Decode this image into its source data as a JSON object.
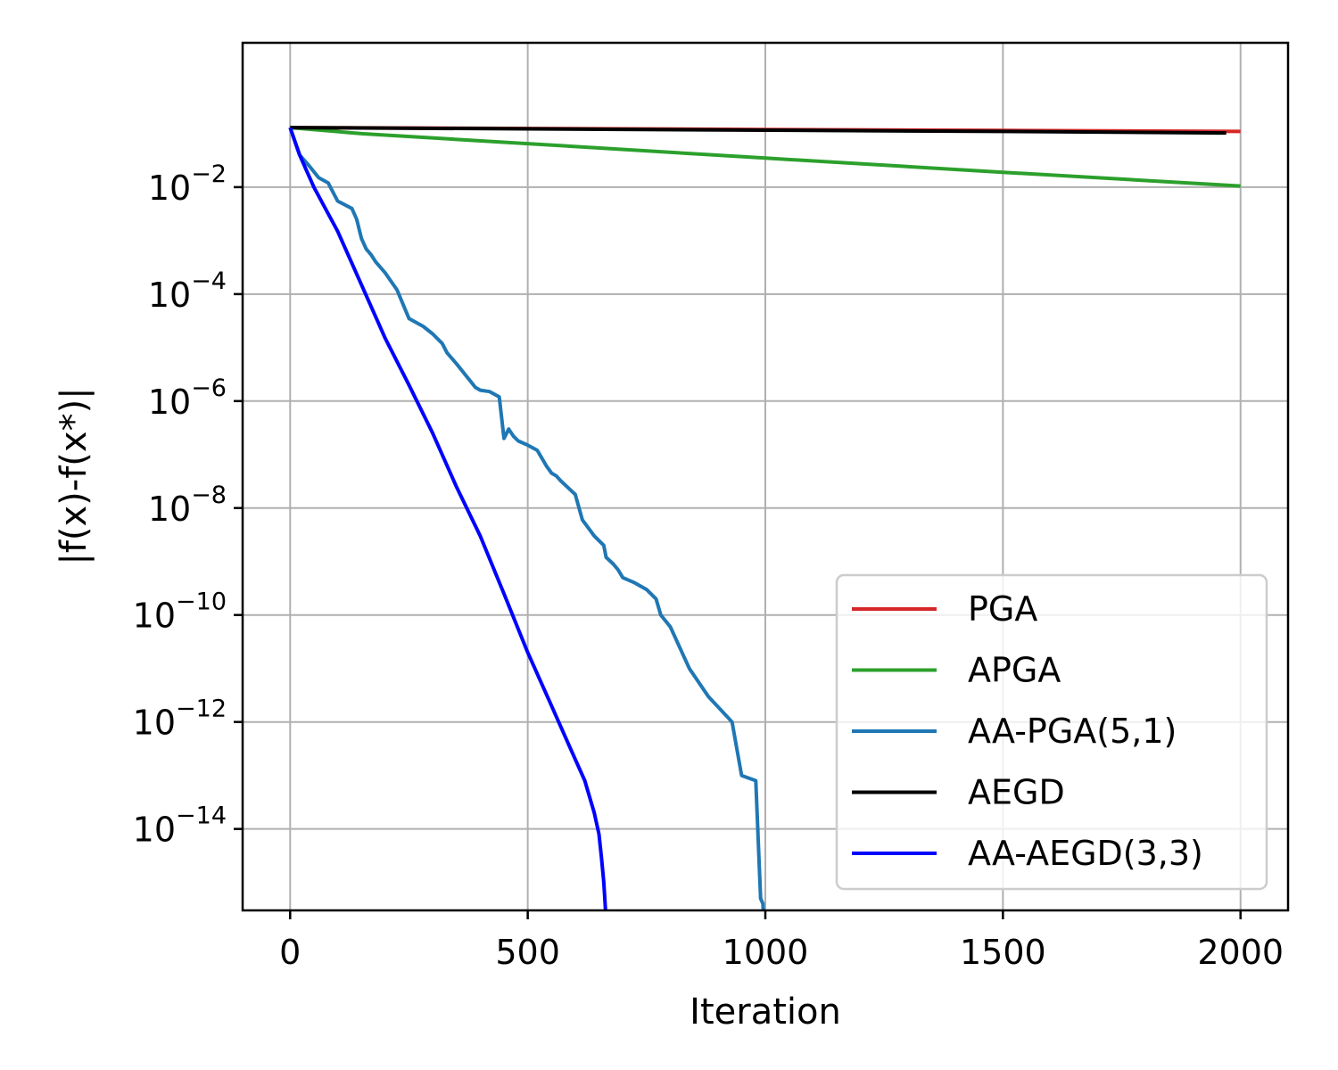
{
  "chart_data": {
    "type": "line",
    "xlabel": "Iteration",
    "ylabel": "|f(x)-f(x*)|",
    "xlim": [
      -100,
      2100
    ],
    "ylim": [
      3e-16,
      5.0
    ],
    "yscale": "log",
    "grid": true,
    "legend_position": "lower-right",
    "x_ticks": [
      0,
      500,
      1000,
      1500,
      2000
    ],
    "x_tick_labels": [
      "0",
      "500",
      "1000",
      "1500",
      "2000"
    ],
    "y_ticks": [
      1e-14,
      1e-12,
      1e-10,
      1e-08,
      1e-06,
      0.0001,
      0.01
    ],
    "y_tick_labels": [
      {
        "base": "10",
        "exp": "−14"
      },
      {
        "base": "10",
        "exp": "−12"
      },
      {
        "base": "10",
        "exp": "−10"
      },
      {
        "base": "10",
        "exp": "−8"
      },
      {
        "base": "10",
        "exp": "−6"
      },
      {
        "base": "10",
        "exp": "−4"
      },
      {
        "base": "10",
        "exp": "−2"
      }
    ],
    "series": [
      {
        "name": "PGA",
        "color": "#d62728",
        "x": [
          0,
          500,
          1000,
          1500,
          2000
        ],
        "y": [
          0.13,
          0.125,
          0.12,
          0.115,
          0.11
        ]
      },
      {
        "name": "APGA",
        "color": "#2ca02c",
        "x": [
          0,
          150,
          500,
          1000,
          1500,
          2000
        ],
        "y": [
          0.13,
          0.1,
          0.065,
          0.035,
          0.019,
          0.0105
        ]
      },
      {
        "name": "AA-PGA(5,1)",
        "color": "#1f77b4",
        "x": [
          0,
          20,
          40,
          60,
          80,
          100,
          130,
          140,
          150,
          160,
          170,
          180,
          200,
          225,
          250,
          280,
          300,
          320,
          330,
          350,
          370,
          390,
          400,
          420,
          440,
          450,
          460,
          470,
          480,
          500,
          520,
          540,
          550,
          560,
          570,
          600,
          615,
          640,
          660,
          665,
          680,
          690,
          700,
          725,
          750,
          770,
          780,
          800,
          840,
          880,
          930,
          950,
          980,
          990,
          995,
          998
        ],
        "y": [
          0.13,
          0.04,
          0.025,
          0.015,
          0.012,
          0.0055,
          0.004,
          0.0025,
          0.0011,
          0.0007,
          0.00055,
          0.0004,
          0.00025,
          0.00012,
          3.5e-05,
          2.5e-05,
          1.8e-05,
          1.2e-05,
          8e-06,
          5e-06,
          3e-06,
          1.8e-06,
          1.6e-06,
          1.5e-06,
          1.2e-06,
          2e-07,
          3e-07,
          2.2e-07,
          1.8e-07,
          1.5e-07,
          1.2e-07,
          6e-08,
          4.5e-08,
          4e-08,
          3.2e-08,
          1.8e-08,
          6e-09,
          3e-09,
          2e-09,
          1.2e-09,
          9e-10,
          7e-10,
          5e-10,
          4e-10,
          3e-10,
          2e-10,
          1e-10,
          6e-11,
          1e-11,
          3e-12,
          1e-12,
          1e-13,
          8e-14,
          5e-16,
          4e-16,
          1e-16
        ]
      },
      {
        "name": "AEGD",
        "color": "#000000",
        "x": [
          0,
          500,
          1000,
          1500,
          1970
        ],
        "y": [
          0.13,
          0.123,
          0.116,
          0.11,
          0.103
        ]
      },
      {
        "name": "AA-AEGD(3,3)",
        "color": "#0000ff",
        "x": [
          0,
          20,
          50,
          100,
          150,
          200,
          250,
          300,
          350,
          400,
          450,
          500,
          550,
          600,
          620,
          640,
          650,
          655,
          660,
          665,
          667
        ],
        "y": [
          0.13,
          0.04,
          0.01,
          0.0015,
          0.00015,
          1.5e-05,
          2e-06,
          2.5e-07,
          2.5e-08,
          3e-09,
          2.5e-10,
          2e-11,
          2e-12,
          2e-13,
          8e-14,
          2e-14,
          8e-15,
          3e-15,
          1e-15,
          2e-16,
          1e-16
        ]
      }
    ]
  }
}
